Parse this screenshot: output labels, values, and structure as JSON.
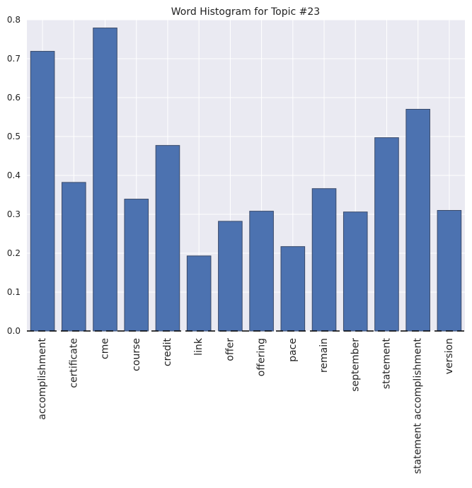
{
  "chart_data": {
    "type": "bar",
    "title": "Word Histogram for Topic #23",
    "xlabel": "",
    "ylabel": "",
    "categories": [
      "accomplishment",
      "certificate",
      "cme",
      "course",
      "credit",
      "link",
      "offer",
      "offering",
      "pace",
      "remain",
      "september",
      "statement",
      "statement accomplishment",
      "version"
    ],
    "values": [
      0.719,
      0.382,
      0.779,
      0.339,
      0.477,
      0.193,
      0.282,
      0.308,
      0.217,
      0.366,
      0.306,
      0.497,
      0.57,
      0.31
    ],
    "ylim": [
      0,
      0.8
    ],
    "yticks": [
      "0.0",
      "0.1",
      "0.2",
      "0.3",
      "0.4",
      "0.5",
      "0.6",
      "0.7",
      "0.8"
    ],
    "grid": true,
    "legend": "none",
    "colors": {
      "bar": "#4c72b0",
      "bar_edge": "#3a4a6a",
      "background": "#eaeaf2",
      "grid": "#ffffff",
      "baseline": "#000000"
    }
  }
}
